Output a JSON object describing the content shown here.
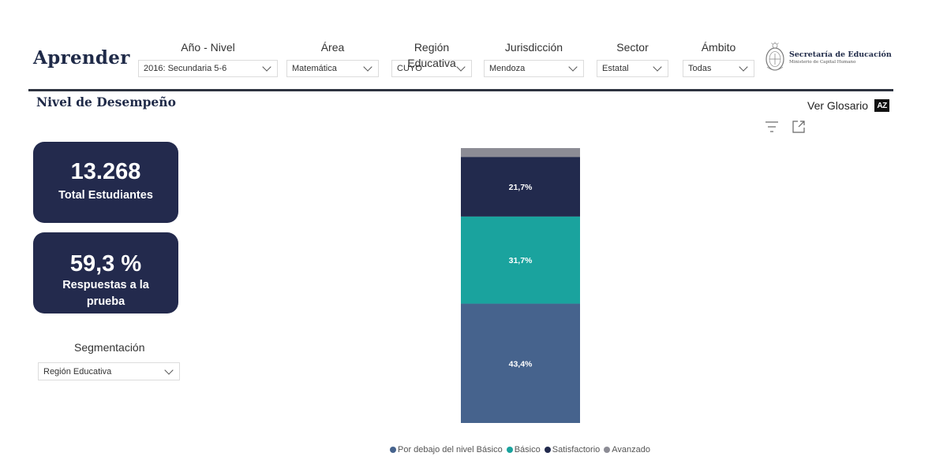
{
  "header": {
    "brand": "Aprender",
    "filters": [
      {
        "label": "Año - Nivel",
        "value": "2016: Secundaria 5-6"
      },
      {
        "label": "Área",
        "value": "Matemática"
      },
      {
        "label": "Región Educativa",
        "value": "CUYO"
      },
      {
        "label": "Jurisdicción",
        "value": "Mendoza"
      },
      {
        "label": "Sector",
        "value": "Estatal"
      },
      {
        "label": "Ámbito",
        "value": "Todas"
      }
    ],
    "logo": {
      "title": "Secretaría de Educación",
      "subtitle": "Ministerio de Capital Humano"
    }
  },
  "section": {
    "title": "Nivel de Desempeño",
    "glossary_label": "Ver Glosario",
    "glossary_icon_text": "AZ"
  },
  "kpis": [
    {
      "value": "13.268",
      "label": "Total Estudiantes"
    },
    {
      "value": "59,3 %",
      "label": "Respuestas a la prueba"
    }
  ],
  "segmentation": {
    "label": "Segmentación",
    "value": "Región Educativa"
  },
  "chart_data": {
    "type": "bar",
    "stacked": true,
    "categories": [
      ""
    ],
    "series": [
      {
        "name": "Por debajo del nivel Básico",
        "values": [
          43.4
        ],
        "label": "43,4%",
        "color": "#46638d"
      },
      {
        "name": "Básico",
        "values": [
          31.7
        ],
        "label": "31,7%",
        "color": "#1aa39e"
      },
      {
        "name": "Satisfactorio",
        "values": [
          21.7
        ],
        "label": "21,7%",
        "color": "#222a4d"
      },
      {
        "name": "Avanzado",
        "values": [
          3.2
        ],
        "label": "",
        "color": "#8c8c95"
      }
    ],
    "ylim": [
      0,
      100
    ],
    "legend_position": "bottom"
  }
}
